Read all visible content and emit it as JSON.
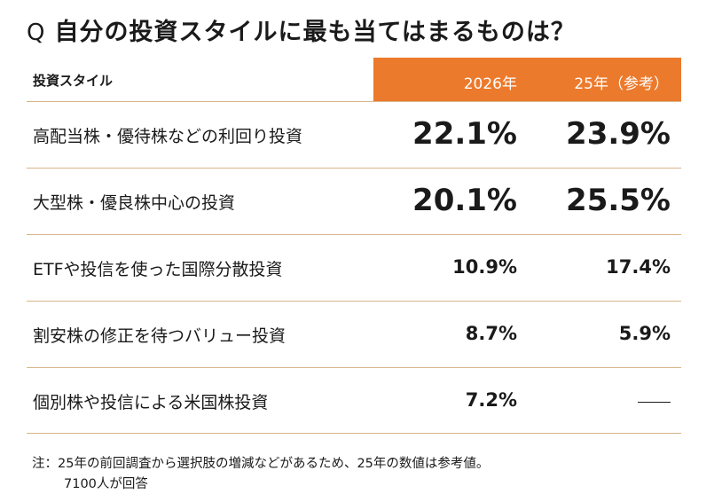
{
  "title": {
    "prefix": "Q",
    "text": "自分の投資スタイルに最も当てはまるものは？"
  },
  "colors": {
    "header_bg": "#ec7a2c",
    "divider": "#d8b48a",
    "text": "#1a1a1a"
  },
  "chart_data": {
    "type": "table",
    "columns": [
      "投資スタイル",
      "2026年",
      "25年（参考）"
    ],
    "rows": [
      {
        "label": "高配当株・優待株などの利回り投資",
        "v2026": "22.1%",
        "v2025": "23.9%"
      },
      {
        "label": "大型株・優良株中心の投資",
        "v2026": "20.1%",
        "v2025": "25.5%"
      },
      {
        "label": "ETFや投信を使った国際分散投資",
        "v2026": "10.9%",
        "v2025": "17.4%"
      },
      {
        "label": "割安株の修正を待つバリュー投資",
        "v2026": "8.7%",
        "v2025": "5.9%"
      },
      {
        "label": "個別株や投信による米国株投資",
        "v2026": "7.2%",
        "v2025": null
      }
    ]
  },
  "note": {
    "line1": "注：25年の前回調査から選択肢の増減などがあるため、25年の数値は参考値。",
    "line2": "7100人が回答"
  }
}
